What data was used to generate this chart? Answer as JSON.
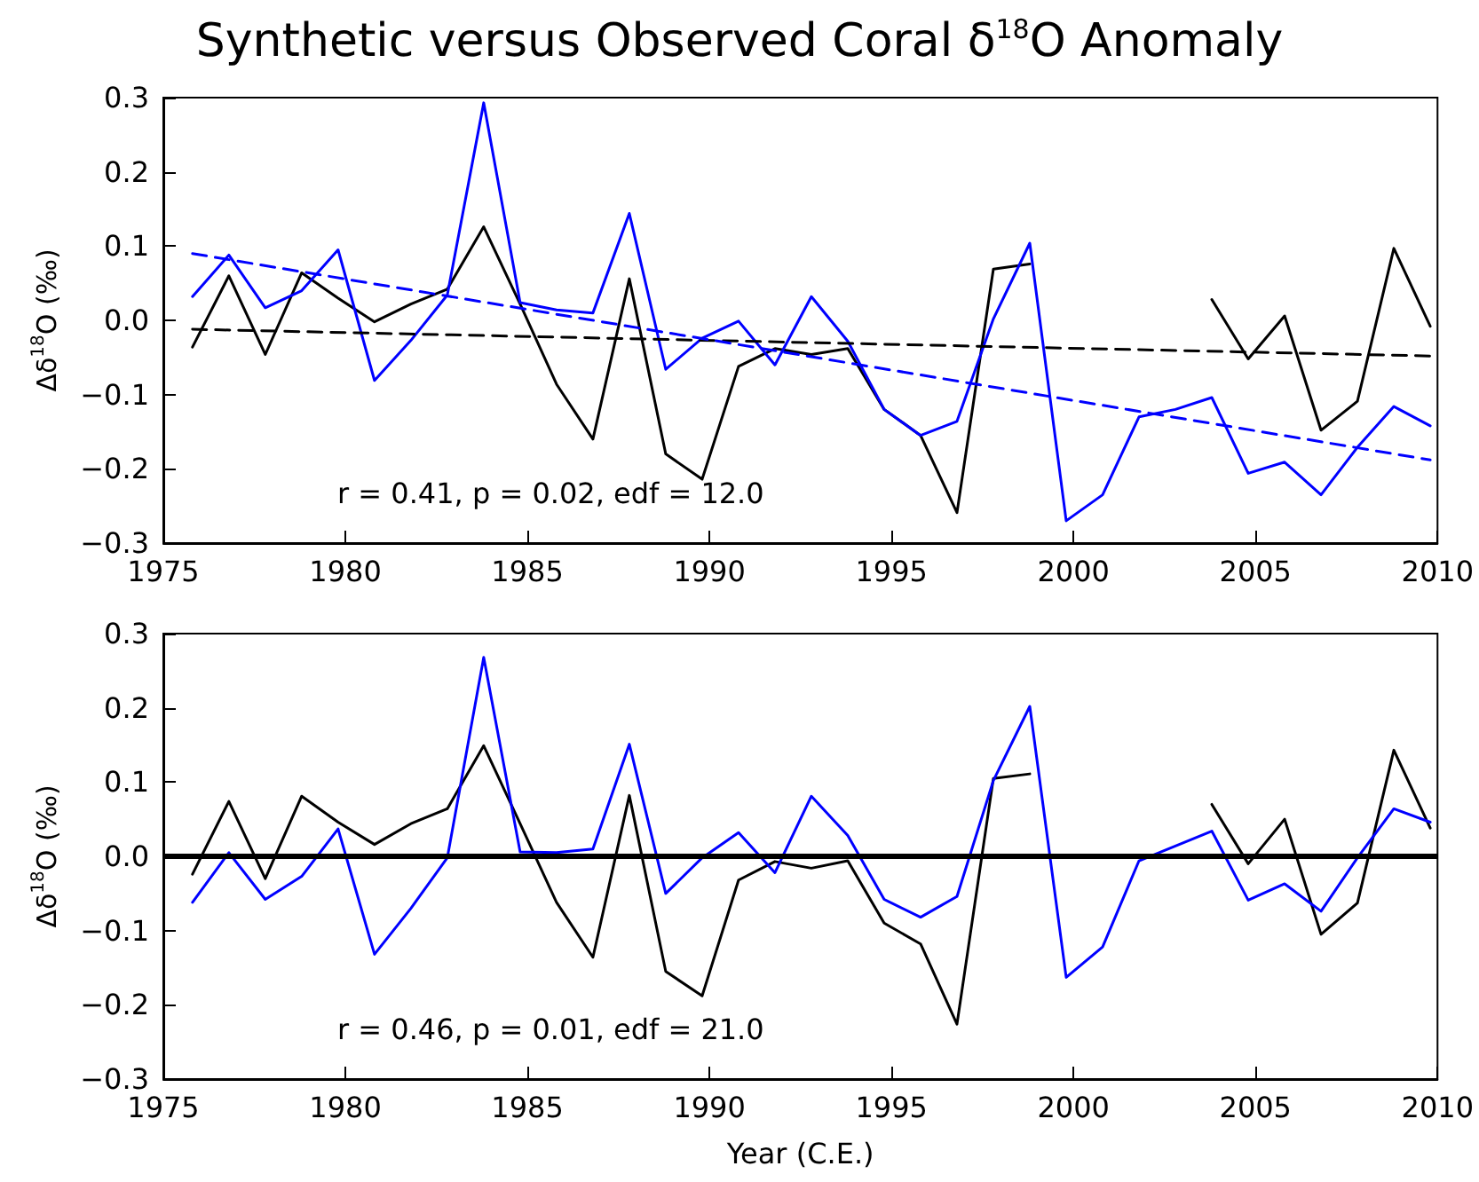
{
  "chart_data": [
    {
      "type": "line",
      "title": "Synthetic versus Observed Coral δ$^{18}$O Anomaly",
      "ylabel": "Δδ$^{18}$O (‰)",
      "annotations": [
        "r = 0.41, p = 0.02, edf = 12.0"
      ],
      "marker": "none",
      "x": [
        1975.8,
        1976.8,
        1977.8,
        1978.8,
        1979.8,
        1980.8,
        1981.8,
        1982.8,
        1983.8,
        1984.8,
        1985.8,
        1986.8,
        1987.8,
        1988.8,
        1989.8,
        1990.8,
        1991.8,
        1992.8,
        1993.8,
        1994.8,
        1995.8,
        1996.8,
        1997.8,
        1998.8,
        1999.8,
        2000.8,
        2001.8,
        2002.8,
        2003.8,
        2004.8,
        2005.8,
        2006.8,
        2007.8,
        2008.8,
        2009.8
      ],
      "xlim": [
        1975,
        2010
      ],
      "xticks": [
        1975,
        1980,
        1985,
        1990,
        1995,
        2000,
        2005,
        2010
      ],
      "ylim": [
        -0.3,
        0.3
      ],
      "yticks": [
        {
          "value": -0.3,
          "label": "−0.3"
        },
        {
          "value": -0.2,
          "label": "−0.2"
        },
        {
          "value": -0.1,
          "label": "−0.1"
        },
        {
          "value": 0,
          "label": "0.0"
        },
        {
          "value": 0.1,
          "label": "0.1"
        },
        {
          "value": 0.2,
          "label": "0.2"
        },
        {
          "value": 0.3,
          "label": "0.3"
        }
      ],
      "series": [
        {
          "color": "#000000",
          "values": [
            -0.036,
            0.06,
            -0.046,
            0.064,
            0.03,
            -0.002,
            0.022,
            0.042,
            0.126,
            0.022,
            -0.086,
            -0.16,
            0.056,
            -0.18,
            -0.214,
            -0.062,
            -0.038,
            -0.046,
            -0.038,
            -0.12,
            -0.155,
            -0.259,
            0.069,
            0.076,
            null,
            null,
            null,
            null,
            0.028,
            -0.052,
            0.006,
            -0.148,
            -0.109,
            0.097,
            -0.008
          ]
        },
        {
          "color": "#0000ff",
          "values": [
            0.032,
            0.088,
            0.017,
            0.04,
            0.095,
            -0.081,
            -0.027,
            0.034,
            0.293,
            0.024,
            0.014,
            0.01,
            0.144,
            -0.066,
            -0.024,
            -0.001,
            -0.06,
            0.032,
            -0.028,
            -0.12,
            -0.155,
            -0.136,
            0.002,
            0.104,
            -0.27,
            -0.235,
            -0.13,
            -0.12,
            -0.104,
            -0.206,
            -0.191,
            -0.235,
            -0.171,
            -0.116,
            -0.142
          ]
        },
        {
          "color": "#000000",
          "type": "line",
          "line_style": "dashed",
          "values": [
            -0.012,
            null,
            null,
            null,
            null,
            null,
            null,
            null,
            null,
            null,
            null,
            null,
            null,
            null,
            null,
            null,
            null,
            null,
            null,
            null,
            null,
            null,
            null,
            null,
            null,
            null,
            null,
            null,
            null,
            null,
            null,
            null,
            null,
            null,
            -0.048
          ]
        },
        {
          "color": "#0000ff",
          "type": "line",
          "line_style": "dashed",
          "values": [
            0.09,
            null,
            null,
            null,
            null,
            null,
            null,
            null,
            null,
            null,
            null,
            null,
            null,
            null,
            null,
            null,
            null,
            null,
            null,
            null,
            null,
            null,
            null,
            null,
            null,
            null,
            null,
            null,
            null,
            null,
            null,
            null,
            null,
            null,
            -0.188
          ]
        }
      ]
    },
    {
      "type": "line",
      "ylabel": "Δδ$^{18}$O (‰)",
      "xlabel": "Year (C.E.)",
      "annotations": [
        "r = 0.46, p = 0.01, edf = 21.0"
      ],
      "marker": "none",
      "x": [
        1975.8,
        1976.8,
        1977.8,
        1978.8,
        1979.8,
        1980.8,
        1981.8,
        1982.8,
        1983.8,
        1984.8,
        1985.8,
        1986.8,
        1987.8,
        1988.8,
        1989.8,
        1990.8,
        1991.8,
        1992.8,
        1993.8,
        1994.8,
        1995.8,
        1996.8,
        1997.8,
        1998.8,
        1999.8,
        2000.8,
        2001.8,
        2002.8,
        2003.8,
        2004.8,
        2005.8,
        2006.8,
        2007.8,
        2008.8,
        2009.8
      ],
      "xlim": [
        1975,
        2010
      ],
      "xticks": [
        1975,
        1980,
        1985,
        1990,
        1995,
        2000,
        2005,
        2010
      ],
      "ylim": [
        -0.3,
        0.3
      ],
      "yticks": [
        {
          "value": -0.3,
          "label": "−0.3"
        },
        {
          "value": -0.2,
          "label": "−0.2"
        },
        {
          "value": -0.1,
          "label": "−0.1"
        },
        {
          "value": 0,
          "label": "0.0"
        },
        {
          "value": 0.1,
          "label": "0.1"
        },
        {
          "value": 0.2,
          "label": "0.2"
        },
        {
          "value": 0.3,
          "label": "0.3"
        }
      ],
      "ref_lines": [
        {
          "axis": "y",
          "value": 0,
          "color": "#000000"
        }
      ],
      "series": [
        {
          "color": "#000000",
          "values": [
            -0.024,
            0.074,
            -0.03,
            0.081,
            0.046,
            0.016,
            0.044,
            0.064,
            0.149,
            0.044,
            -0.062,
            -0.136,
            0.082,
            -0.155,
            -0.188,
            -0.032,
            -0.007,
            -0.016,
            -0.006,
            -0.09,
            -0.118,
            -0.226,
            0.105,
            0.111,
            null,
            null,
            null,
            null,
            0.07,
            -0.01,
            0.05,
            -0.105,
            -0.063,
            0.143,
            0.038
          ]
        },
        {
          "color": "#0000ff",
          "values": [
            -0.062,
            0.005,
            -0.058,
            -0.027,
            0.037,
            -0.132,
            -0.07,
            -0.002,
            0.268,
            0.006,
            0.005,
            0.01,
            0.151,
            -0.05,
            -0.002,
            0.032,
            -0.022,
            0.081,
            0.028,
            -0.058,
            -0.082,
            -0.054,
            0.102,
            0.202,
            -0.163,
            -0.122,
            -0.006,
            0.014,
            0.034,
            -0.059,
            -0.037,
            -0.074,
            -0.002,
            0.064,
            0.046
          ]
        }
      ]
    }
  ]
}
